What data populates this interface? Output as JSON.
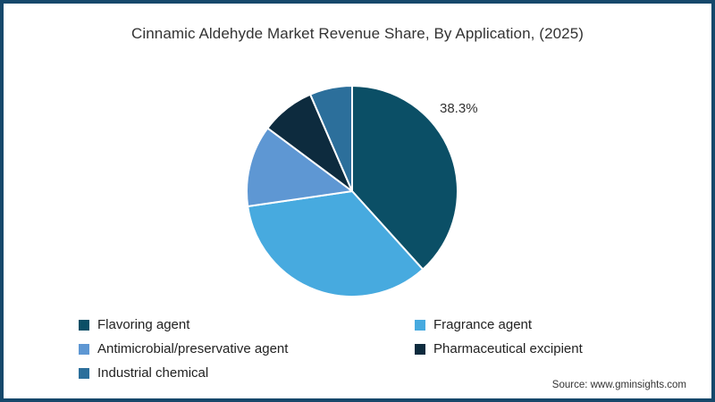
{
  "colors": {
    "frame_border": "#16486B",
    "text": "#333333",
    "slice_stroke": "#FFFFFF"
  },
  "source": "Source: www.gminsights.com",
  "chart_data": {
    "type": "pie",
    "title": "Cinnamic Aldehyde Market Revenue Share, By Application, (2025)",
    "direction": "clockwise",
    "start_angle_deg": 0,
    "legend_position": "bottom, two columns",
    "annotation": {
      "text": "38.3%",
      "applies_to": "Flavoring agent"
    },
    "series": [
      {
        "name": "Flavoring agent",
        "value": 38.3,
        "color": "#0B4F66"
      },
      {
        "name": "Fragrance agent",
        "value": 34.4,
        "color": "#47AADF"
      },
      {
        "name": "Antimicrobial/preservative agent",
        "value": 12.5,
        "color": "#5E97D3"
      },
      {
        "name": "Pharmaceutical excipient",
        "value": 8.3,
        "color": "#0D2B3E"
      },
      {
        "name": "Industrial chemical",
        "value": 6.5,
        "color": "#2C6F9B"
      }
    ]
  }
}
